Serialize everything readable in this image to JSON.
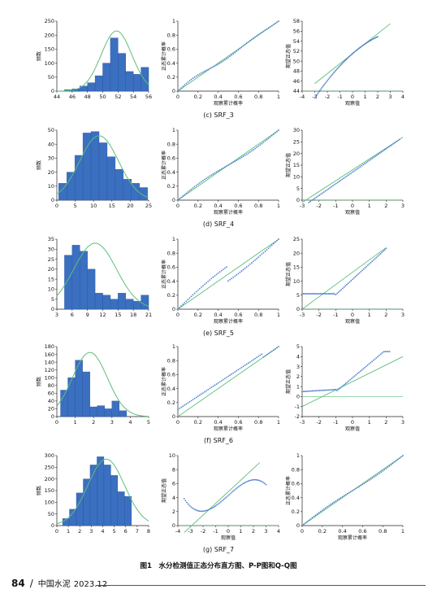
{
  "figure_caption": "图1　水分检测值正态分布直方图、P-P图和Q-Q图",
  "footer": {
    "page": "84",
    "magazine": "中国水泥",
    "issue": "2023.12"
  },
  "colors": {
    "bar": "#3b6fc0",
    "fit_line": "#5cbf7a",
    "points": "#4f7fd0",
    "axis": "#222222"
  },
  "rows": [
    {
      "caption": "(c) SRF_3",
      "hist": {
        "ylabel": "频数",
        "xlim": [
          44,
          56
        ],
        "ylim": [
          0,
          250
        ],
        "xticks": [
          44,
          46,
          48,
          50,
          52,
          54,
          56
        ],
        "yticks": [
          0,
          50,
          100,
          150,
          200,
          250
        ],
        "bin_start": 45,
        "bin_width": 1,
        "values": [
          5,
          8,
          18,
          30,
          55,
          100,
          190,
          135,
          70,
          60,
          85
        ],
        "normal_mean": 51.8,
        "normal_sd": 2.0,
        "normal_peak": 215
      },
      "pp": {
        "ylabel": "正态累计概率",
        "xlabel": "观察累计概率",
        "xlim": [
          0,
          1
        ],
        "ylim": [
          0,
          1
        ],
        "xticks": [
          "0",
          "0.2",
          "0.4",
          "0.6",
          "0.8",
          "1"
        ],
        "yticks": [
          "0",
          "0.2",
          "0.4",
          "0.6",
          "0.8",
          "1"
        ]
      },
      "qq": {
        "ylabel": "期望正态值",
        "xlabel": "观察值",
        "xlim": [
          -4,
          4
        ],
        "ylim": [
          44,
          58
        ],
        "xticks": [
          "-4",
          "-3",
          "-2",
          "-1",
          "0",
          "1",
          "2",
          "3",
          "4"
        ],
        "yticks": [
          "44",
          "46",
          "48",
          "50",
          "52",
          "54",
          "56",
          "58"
        ]
      }
    },
    {
      "caption": "(d) SRF_4",
      "hist": {
        "ylabel": "频数",
        "xlim": [
          0,
          25
        ],
        "ylim": [
          0,
          50
        ],
        "xticks": [
          0,
          5,
          10,
          15,
          20,
          25
        ],
        "yticks": [
          0,
          10,
          20,
          30,
          40,
          50
        ],
        "bin_start": 0.5,
        "bin_width": 2.2,
        "values": [
          12,
          20,
          32,
          48,
          49,
          41,
          31,
          22,
          15,
          12,
          9
        ],
        "normal_mean": 11.5,
        "normal_sd": 5.3,
        "normal_peak": 46
      },
      "pp": {
        "ylabel": "正态累计概率",
        "xlabel": "观察累计概率",
        "xlim": [
          0,
          1
        ],
        "ylim": [
          0,
          1
        ],
        "xticks": [
          "0",
          "0.2",
          "0.4",
          "0.6",
          "0.8",
          "1"
        ],
        "yticks": [
          "0",
          "0.2",
          "0.4",
          "0.6",
          "0.8",
          "1"
        ]
      },
      "qq": {
        "ylabel": "期望正态值",
        "xlabel": "观察值",
        "xlim": [
          -3,
          3
        ],
        "ylim": [
          0,
          30
        ],
        "xticks": [
          "-3",
          "-2",
          "-1",
          "0",
          "1",
          "2",
          "3"
        ],
        "yticks": [
          "0",
          "5",
          "10",
          "15",
          "20",
          "25",
          "30"
        ]
      }
    },
    {
      "caption": "(e) SRF_5",
      "hist": {
        "ylabel": "",
        "xlim": [
          3,
          21
        ],
        "ylim": [
          0,
          35
        ],
        "xticks": [
          3,
          6,
          9,
          12,
          15,
          18,
          21
        ],
        "yticks": [
          0,
          5,
          10,
          15,
          20,
          25,
          30,
          35
        ],
        "bin_start": 4.5,
        "bin_width": 1.5,
        "values": [
          27,
          32,
          29,
          20,
          8,
          7,
          5,
          8,
          5,
          4,
          7
        ],
        "normal_mean": 10.5,
        "normal_sd": 4.2,
        "normal_peak": 33
      },
      "pp": {
        "ylabel": "正态累计概率",
        "xlabel": "观察累计概率",
        "xlim": [
          0,
          1
        ],
        "ylim": [
          0,
          1
        ],
        "xticks": [
          "0",
          "0.2",
          "0.4",
          "0.6",
          "0.8",
          "1"
        ],
        "yticks": [
          "0",
          "0.2",
          "0.4",
          "0.6",
          "0.8",
          "1"
        ]
      },
      "qq": {
        "ylabel": "期望正态值",
        "xlabel": "观察值",
        "xlim": [
          -3,
          3
        ],
        "ylim": [
          0,
          25
        ],
        "xticks": [
          "-3",
          "-2",
          "-1",
          "0",
          "1",
          "2",
          "3"
        ],
        "yticks": [
          "0",
          "5",
          "10",
          "15",
          "20",
          "25"
        ]
      }
    },
    {
      "caption": "(f) SRF_6",
      "hist": {
        "ylabel": "频数",
        "xlim": [
          0,
          5
        ],
        "ylim": [
          0,
          180
        ],
        "xticks": [
          0,
          1,
          2,
          3,
          4,
          5
        ],
        "yticks": [
          0,
          20,
          40,
          60,
          80,
          100,
          120,
          140,
          160,
          180
        ],
        "bin_start": 0.2,
        "bin_width": 0.4,
        "values": [
          68,
          100,
          145,
          115,
          25,
          28,
          20,
          40,
          15
        ],
        "normal_mean": 1.8,
        "normal_sd": 0.95,
        "normal_peak": 165
      },
      "pp": {
        "ylabel": "正态累计概率",
        "xlabel": "观察累计概率",
        "xlim": [
          0,
          1
        ],
        "ylim": [
          0,
          1
        ],
        "xticks": [
          "0",
          "0.2",
          "0.4",
          "0.6",
          "0.8",
          "1"
        ],
        "yticks": [
          "0",
          "0.2",
          "0.4",
          "0.6",
          "0.8",
          "1"
        ]
      },
      "qq": {
        "ylabel": "期望正态值",
        "xlabel": "观察值",
        "xlim": [
          -3,
          3
        ],
        "ylim": [
          -2,
          5
        ],
        "xticks": [
          "-3",
          "-2",
          "-1",
          "0",
          "1",
          "2",
          "3"
        ],
        "yticks": [
          "-2",
          "-1",
          "0",
          "1",
          "2",
          "3",
          "4",
          "5"
        ]
      }
    },
    {
      "caption": "(g) SRF_7",
      "hist": {
        "ylabel": "频数",
        "xlim": [
          0,
          8
        ],
        "ylim": [
          0,
          300
        ],
        "xticks": [
          0,
          1,
          2,
          3,
          4,
          5,
          6,
          7,
          8
        ],
        "yticks": [
          0,
          50,
          100,
          150,
          200,
          250,
          300
        ],
        "bin_start": 0.5,
        "bin_width": 0.6,
        "values": [
          30,
          70,
          140,
          200,
          260,
          295,
          260,
          215,
          145,
          125
        ],
        "normal_mean": 4.3,
        "normal_sd": 1.6,
        "normal_peak": 285
      },
      "pp": {
        "ylabel": "期望正态值",
        "xlabel": "观察值",
        "xlim": [
          -4,
          4
        ],
        "ylim": [
          0,
          10
        ],
        "xticks": [
          "-4",
          "-3",
          "-2",
          "-1",
          "0",
          "1",
          "2",
          "3",
          "4"
        ],
        "yticks": [
          "0",
          "2",
          "4",
          "6",
          "8",
          "10"
        ]
      },
      "qq": {
        "ylabel": "正态累计概率",
        "xlabel": "观察累计概率",
        "xlim": [
          0,
          1
        ],
        "ylim": [
          0,
          1
        ],
        "xticks": [
          "0",
          "0.2",
          "0.4",
          "0.6",
          "0.8",
          "1"
        ],
        "yticks": [
          "0",
          "0.2",
          "0.4",
          "0.6",
          "0.8",
          "1"
        ]
      }
    }
  ]
}
